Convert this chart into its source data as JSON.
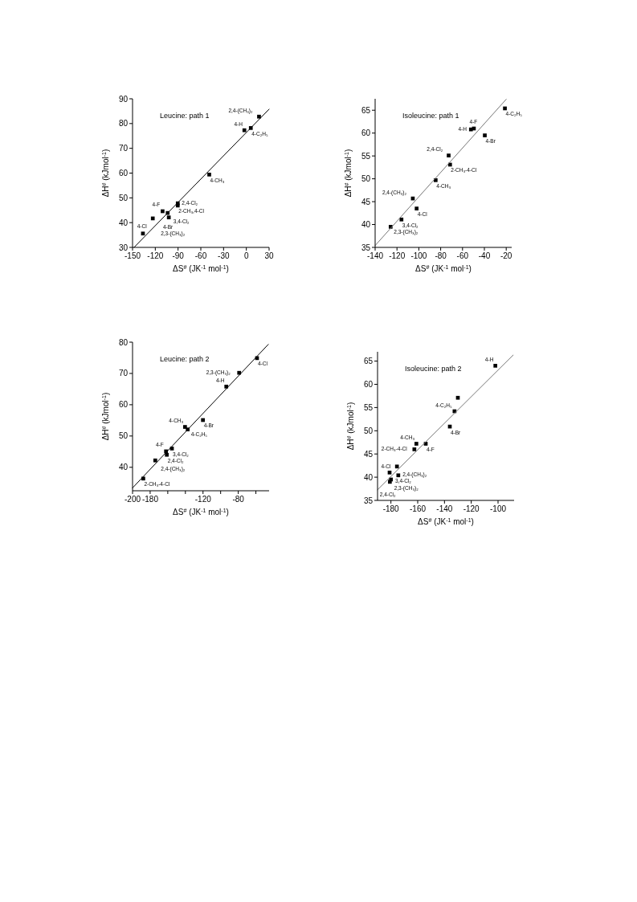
{
  "chart_data": [
    {
      "type": "scatter",
      "title": "Leucine: path 1",
      "xlabel": "ΔS$^{#}$ (JK$^{-1}$ mol$^{-1}$)",
      "ylabel": "ΔH$^{#}$ (kJmol$^{-1}$)",
      "xlim": [
        -150,
        30
      ],
      "ylim": [
        30,
        90
      ],
      "xticks": [
        -150,
        -120,
        -90,
        -60,
        -30,
        0,
        30
      ],
      "yticks": [
        30,
        40,
        50,
        60,
        70,
        80,
        90
      ],
      "series": [
        {
          "marker": "square",
          "color": "#000000",
          "x": [
            16.7,
            5.9,
            -2.6,
            -48.9,
            -90.4,
            -90.4,
            -110.4,
            -103.7,
            -102.2,
            -123.3,
            -136.3
          ],
          "values": [
            82.8,
            78.2,
            77.3,
            59.4,
            47.8,
            46.9,
            44.6,
            43.9,
            42.1,
            41.7,
            35.6
          ]
        },
        {
          "type": "line",
          "color": "#000000",
          "x": [
            -148,
            30
          ],
          "values": [
            30,
            85.8
          ]
        }
      ],
      "annotations": [
        {
          "text": "2,4-(CH₃)₂",
          "x": 16.7,
          "y": 82.8
        },
        {
          "text": "4-C₂H₅",
          "x": 5.9,
          "y": 78.2
        },
        {
          "text": "4-H",
          "x": -2.6,
          "y": 77.3
        },
        {
          "text": "4-CH₃",
          "x": -48.9,
          "y": 59.4
        },
        {
          "text": "2,4-Cl₂",
          "x": -90.4,
          "y": 47.8
        },
        {
          "text": "2-CH₃,4-Cl",
          "x": -90.4,
          "y": 46.9
        },
        {
          "text": "4-F",
          "x": -110.4,
          "y": 44.6
        },
        {
          "text": "3,4-Cl₂",
          "x": -103.7,
          "y": 43.9
        },
        {
          "text": "4-Br",
          "x": -102.2,
          "y": 42.1
        },
        {
          "text": "2,3-(CH₃)₂",
          "x": -123.3,
          "y": 41.7
        },
        {
          "text": "4-Cl",
          "x": -136.3,
          "y": 35.6
        }
      ]
    },
    {
      "type": "scatter",
      "title": "Isoleucine: path 1",
      "xlabel": "ΔS$^{#}$ (JK$^{-1}$ mol$^{-1}$)",
      "ylabel": "ΔH$^{#}$ (kJmol$^{-1}$)",
      "xlim": [
        -140,
        -15
      ],
      "ylim": [
        35,
        67.5
      ],
      "xticks": [
        -140,
        -120,
        -100,
        -80,
        -60,
        -40,
        -20
      ],
      "yticks": [
        35,
        40,
        45,
        50,
        55,
        60,
        65
      ],
      "series": [
        {
          "marker": "square",
          "color": "#000000",
          "x": [
            -21.2,
            -49.6,
            -52.3,
            -39.6,
            -72.7,
            -71.4,
            -84.6,
            -105.5,
            -102,
            -115.9,
            -125.8
          ],
          "values": [
            65.4,
            61.0,
            60.8,
            59.5,
            55.1,
            53.1,
            49.7,
            45.7,
            43.5,
            41.1,
            39.5
          ]
        },
        {
          "type": "line",
          "color": "#777777",
          "x": [
            -140,
            -20
          ],
          "values": [
            35.4,
            67.4
          ]
        }
      ],
      "annotations": [
        {
          "text": "4-C₂H₅",
          "x": -21.2,
          "y": 65.4
        },
        {
          "text": "4-F",
          "x": -49.6,
          "y": 61.0
        },
        {
          "text": "4-H",
          "x": -52.3,
          "y": 60.8
        },
        {
          "text": "4-Br",
          "x": -39.6,
          "y": 59.5
        },
        {
          "text": "2,4-Cl₂",
          "x": -72.7,
          "y": 55.1
        },
        {
          "text": "2-CH₃-4-Cl",
          "x": -71.4,
          "y": 53.1
        },
        {
          "text": "4-CH₃",
          "x": -84.6,
          "y": 49.7
        },
        {
          "text": "2,4-(CH₃)₂",
          "x": -105.5,
          "y": 45.7
        },
        {
          "text": "4-Cl",
          "x": -102,
          "y": 43.5
        },
        {
          "text": "3,4-Cl₂",
          "x": -115.9,
          "y": 41.1
        },
        {
          "text": "2,3-(CH₃)₂",
          "x": -125.8,
          "y": 39.5
        }
      ]
    },
    {
      "type": "scatter",
      "title": "Leucine: path 2",
      "xlabel": "ΔS$^{#}$ (JK$^{-1}$ mol$^{-1}$)",
      "ylabel": "ΔH$^{#}$ (kJmol$^{-1}$)",
      "xlim": [
        -200,
        -45
      ],
      "ylim": [
        32.5,
        80
      ],
      "xticks": [
        -200,
        -180,
        {
          "value": -160,
          "label": null
        },
        {
          "value": -140,
          "label": null
        },
        -120,
        {
          "value": -100,
          "label": null
        },
        -80,
        {
          "value": -60,
          "label": null
        }
      ],
      "yticks": [
        40,
        50,
        60,
        70,
        80
      ],
      "series": [
        {
          "marker": "square",
          "color": "#000000",
          "x": [
            -58.7,
            -79,
            -93.6,
            -120.1,
            -140.4,
            -137.4,
            -162,
            -155.3,
            -161.1,
            -174.2,
            -187.8
          ],
          "values": [
            74.9,
            70.2,
            65.8,
            55.1,
            52.9,
            52.1,
            45.1,
            46.0,
            44.0,
            42.2,
            36.4
          ]
        },
        {
          "type": "line",
          "color": "#000000",
          "x": [
            -200,
            -45.9
          ],
          "values": [
            33.4,
            79.3
          ]
        }
      ],
      "annotations": [
        {
          "text": "4-Cl",
          "x": -58.7,
          "y": 74.9
        },
        {
          "text": "2,3-(CH₃)₂",
          "x": -79,
          "y": 70.2
        },
        {
          "text": "4-H",
          "x": -93.6,
          "y": 65.8
        },
        {
          "text": "4-Br",
          "x": -120.1,
          "y": 55.1
        },
        {
          "text": "4-CH₃",
          "x": -140.4,
          "y": 52.9
        },
        {
          "text": "4-C₂H₅",
          "x": -137.4,
          "y": 52.1
        },
        {
          "text": "4-F",
          "x": -162,
          "y": 45.1
        },
        {
          "text": "3,4-Cl₂",
          "x": -155.3,
          "y": 46.0
        },
        {
          "text": "2,4-Cl₂",
          "x": -161.1,
          "y": 44.0
        },
        {
          "text": "2,4-(CH₃)₂",
          "x": -174.2,
          "y": 42.2
        },
        {
          "text": "2-CH₃-4-Cl",
          "x": -187.8,
          "y": 36.4
        }
      ]
    },
    {
      "type": "scatter",
      "title": "Isoleucine: path 2",
      "xlabel": "ΔS$^{#}$ (JK$^{-1}$ mol$^{-1}$)",
      "ylabel": "ΔH$^{#}$ (kJmol$^{-1}$)",
      "xlim": [
        -190,
        -88
      ],
      "ylim": [
        35,
        67
      ],
      "xticks": [
        -180,
        -160,
        -140,
        -120,
        -100
      ],
      "yticks": [
        35,
        40,
        45,
        50,
        55,
        60,
        65
      ],
      "series": [
        {
          "marker": "square",
          "color": "#000000",
          "x": [
            -102,
            -130,
            -132.5,
            -136,
            -161,
            -154,
            -162.5,
            -175.5,
            -181,
            -174.5,
            -180,
            -180.8
          ],
          "values": [
            64.0,
            57.1,
            54.2,
            50.9,
            47.2,
            47.2,
            46.0,
            42.3,
            41.0,
            40.4,
            39.5,
            39.0
          ]
        },
        {
          "type": "line",
          "color": "#777777",
          "x": [
            -190,
            -88.7
          ],
          "values": [
            37.3,
            66.3
          ]
        }
      ],
      "annotations": [
        {
          "text": "4-H",
          "x": -102,
          "y": 64.0
        },
        {
          "text": "4-C₂H₅",
          "x": -132.5,
          "y": 54.2
        },
        {
          "text": "4-Br",
          "x": -136,
          "y": 50.9
        },
        {
          "text": "4-CH₃",
          "x": -161,
          "y": 47.2
        },
        {
          "text": "4-F",
          "x": -154,
          "y": 47.2
        },
        {
          "text": "2-CH₃-4-Cl",
          "x": -162.5,
          "y": 46.0
        },
        {
          "text": "2,4-(CH₃)₂",
          "x": -175.5,
          "y": 42.3
        },
        {
          "text": "3,4-Cl₂",
          "x": -181,
          "y": 41.0
        },
        {
          "text": "4-Cl",
          "x": -174.5,
          "y": 40.4
        },
        {
          "text": "2,3-(CH₃)₂",
          "x": -180,
          "y": 39.5
        },
        {
          "text": "2,4-Cl₂",
          "x": -180.8,
          "y": 39.0
        }
      ]
    }
  ]
}
